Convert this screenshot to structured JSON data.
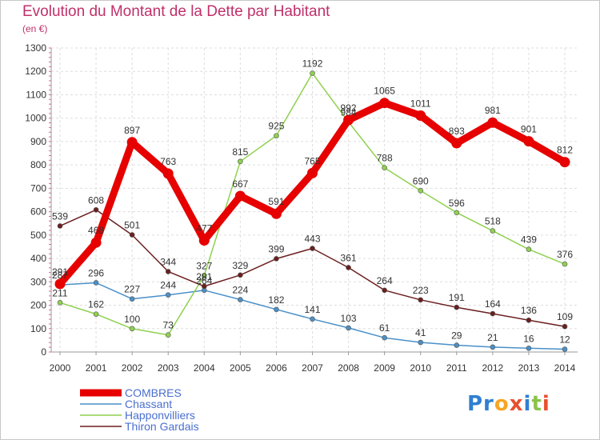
{
  "header": {
    "title": "Evolution du Montant de la Dette par Habitant",
    "unit": "(en €)"
  },
  "logo": {
    "text": "Proxiti",
    "colors": [
      "#2f7fd1",
      "#e94f2e",
      "#8bc34a",
      "#f5a623"
    ]
  },
  "chart_data": {
    "type": "line",
    "title": "Evolution du Montant de la Dette par Habitant",
    "ylabel": "(en €)",
    "ylim": [
      0,
      1300
    ],
    "yticks": [
      0,
      100,
      200,
      300,
      400,
      500,
      600,
      700,
      800,
      900,
      1000,
      1100,
      1200,
      1300
    ],
    "grid": true,
    "legend_position": "bottom-left",
    "x": [
      "2000",
      "2001",
      "2002",
      "2003",
      "2004",
      "2005",
      "2006",
      "2007",
      "2008",
      "2009",
      "2010",
      "2011",
      "2012",
      "2013",
      "2014"
    ],
    "series": [
      {
        "name": "COMBRES",
        "color": "#e60000",
        "highlight": true,
        "values": [
          291,
          468,
          897,
          763,
          477,
          667,
          591,
          765,
          992,
          1065,
          1011,
          893,
          981,
          901,
          812
        ]
      },
      {
        "name": "Chassant",
        "color": "#4a90c8",
        "highlight": false,
        "values": [
          287,
          296,
          227,
          244,
          264,
          224,
          182,
          141,
          103,
          61,
          41,
          29,
          21,
          16,
          12
        ]
      },
      {
        "name": "Happonvilliers",
        "color": "#8fd14f",
        "highlight": false,
        "values": [
          211,
          162,
          100,
          73,
          327,
          815,
          925,
          1192,
          984,
          788,
          690,
          596,
          518,
          439,
          376
        ]
      },
      {
        "name": "Thiron Gardais",
        "color": "#6b1f1f",
        "highlight": false,
        "values": [
          539,
          608,
          501,
          344,
          281,
          329,
          399,
          443,
          361,
          264,
          223,
          191,
          164,
          136,
          109
        ]
      }
    ],
    "data_labels": {
      "COMBRES": [
        "291",
        "468",
        "897",
        "763",
        "477",
        "667",
        "591",
        "765",
        "992",
        "1065",
        "1011",
        "893",
        "981",
        "901",
        "812"
      ],
      "Chassant": [
        "287",
        "296",
        "227",
        "244",
        "264",
        "224",
        "182",
        "141",
        "103",
        "61",
        "41",
        "29",
        "21",
        "16",
        "12"
      ],
      "Happonvilliers": [
        "211",
        "162",
        "100",
        "73",
        "327",
        "815",
        "925",
        "1192",
        "984",
        "788",
        "690",
        "596",
        "518",
        "439",
        "376"
      ],
      "Thiron Gardais": [
        "539",
        "608",
        "501",
        "344",
        "281",
        "329",
        "399",
        "443",
        "361",
        "264",
        "223",
        "191",
        "164",
        "136",
        "109"
      ]
    }
  }
}
